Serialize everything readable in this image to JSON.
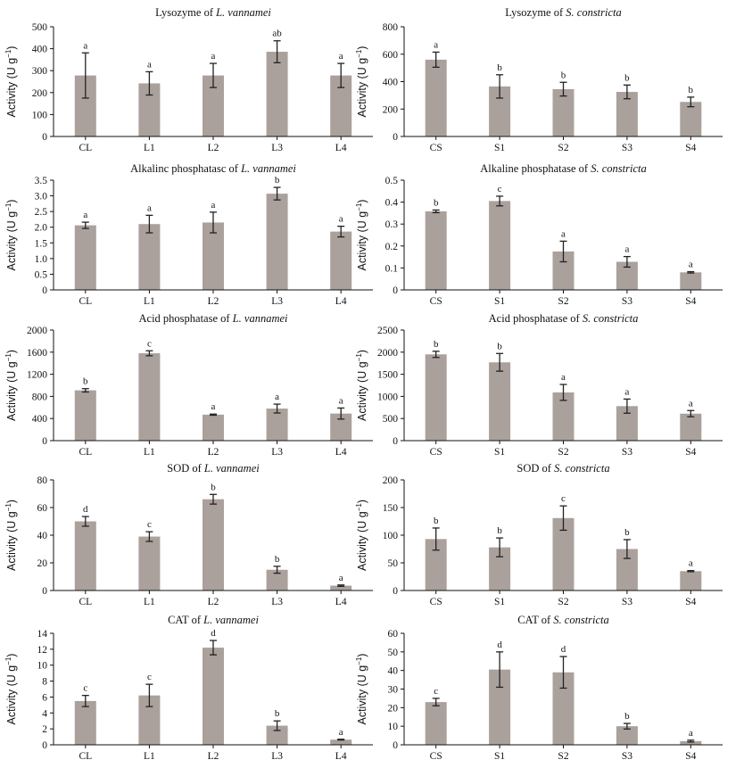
{
  "chart_data": [
    {
      "type": "bar",
      "title_prefix": "Lysozyme of",
      "species": "L. vannamei",
      "ylabel": "Activity (U g",
      "ylabel_sup": "−1",
      "ylabel_tail": ")",
      "categories": [
        "CL",
        "L1",
        "L2",
        "L3",
        "L4"
      ],
      "values": [
        278,
        242,
        278,
        386,
        278
      ],
      "errors": [
        103,
        53,
        55,
        50,
        55
      ],
      "letters": [
        "a",
        "a",
        "a",
        "ab",
        "a"
      ],
      "ylim": [
        0,
        500
      ],
      "yticks": [
        "0",
        "100",
        "200",
        "300",
        "400",
        "500"
      ]
    },
    {
      "type": "bar",
      "title_prefix": "Lysozyme of",
      "species": "S. constricta",
      "ylabel": "Activity (U g",
      "ylabel_sup": "−1",
      "ylabel_tail": ")",
      "categories": [
        "CS",
        "S1",
        "S2",
        "S3",
        "S4"
      ],
      "values": [
        560,
        365,
        345,
        325,
        252
      ],
      "errors": [
        55,
        85,
        50,
        50,
        35
      ],
      "letters": [
        "a",
        "b",
        "b",
        "b",
        "b"
      ],
      "ylim": [
        0,
        800
      ],
      "yticks": [
        "0",
        "200",
        "400",
        "600",
        "800"
      ]
    },
    {
      "type": "bar",
      "title_prefix": "Alkalinc phosphatasc of",
      "species": "L. vannamei",
      "ylabel": "Activity (U g",
      "ylabel_sup": "−1",
      "ylabel_tail": ")",
      "categories": [
        "CL",
        "L1",
        "L2",
        "L3",
        "L4"
      ],
      "values": [
        2.06,
        2.1,
        2.15,
        3.07,
        1.86
      ],
      "errors": [
        0.1,
        0.28,
        0.33,
        0.2,
        0.17
      ],
      "letters": [
        "a",
        "a",
        "a",
        "b",
        "a"
      ],
      "ylim": [
        0,
        3.5
      ],
      "yticks": [
        "0",
        "0.5",
        "1.0",
        "1.5",
        "2.0",
        "2.5",
        "3.0",
        "3.5"
      ]
    },
    {
      "type": "bar",
      "title_prefix": "Alkaline phosphatase of",
      "species": "S. constricta",
      "ylabel": "Activity (U g",
      "ylabel_sup": "−1",
      "ylabel_tail": ")",
      "categories": [
        "CS",
        "S1",
        "S2",
        "S3",
        "S4"
      ],
      "values": [
        0.358,
        0.405,
        0.175,
        0.128,
        0.08
      ],
      "errors": [
        0.006,
        0.022,
        0.047,
        0.024,
        0.003
      ],
      "letters": [
        "b",
        "c",
        "a",
        "a",
        "a"
      ],
      "ylim": [
        0,
        0.5
      ],
      "yticks": [
        "0",
        "0.1",
        "0.2",
        "0.3",
        "0.4",
        "0.5"
      ]
    },
    {
      "type": "bar",
      "title_prefix": "Acid phosphatase of",
      "species": "L. vannamei",
      "ylabel": "Activity (U g",
      "ylabel_sup": "−1",
      "ylabel_tail": ")",
      "categories": [
        "CL",
        "L1",
        "L2",
        "L3",
        "L4"
      ],
      "values": [
        910,
        1580,
        470,
        580,
        490
      ],
      "errors": [
        30,
        45,
        10,
        80,
        100
      ],
      "letters": [
        "b",
        "c",
        "a",
        "a",
        "a"
      ],
      "ylim": [
        0,
        2000
      ],
      "yticks": [
        "0",
        "400",
        "800",
        "1200",
        "1600",
        "2000"
      ]
    },
    {
      "type": "bar",
      "title_prefix": "Acid phosphatase of",
      "species": "S. constricta",
      "ylabel": "Activity (U g",
      "ylabel_sup": "−1",
      "ylabel_tail": ")",
      "categories": [
        "CS",
        "S1",
        "S2",
        "S3",
        "S4"
      ],
      "values": [
        1950,
        1770,
        1090,
        780,
        610
      ],
      "errors": [
        70,
        200,
        180,
        160,
        70
      ],
      "letters": [
        "b",
        "b",
        "a",
        "a",
        "a"
      ],
      "ylim": [
        0,
        2500
      ],
      "yticks": [
        "0",
        "500",
        "1000",
        "1500",
        "2000",
        "2500"
      ]
    },
    {
      "type": "bar",
      "title_prefix": "SOD of",
      "species": "L. vannamei",
      "ylabel": "Activity (U g",
      "ylabel_sup": "−1",
      "ylabel_tail": ")",
      "categories": [
        "CL",
        "L1",
        "L2",
        "L3",
        "L4"
      ],
      "values": [
        50,
        39,
        66,
        15,
        3.5
      ],
      "errors": [
        3.5,
        3.5,
        3.5,
        2.5,
        0.5
      ],
      "letters": [
        "d",
        "c",
        "b",
        "b",
        "a"
      ],
      "ylim": [
        0,
        80
      ],
      "yticks": [
        "0",
        "20",
        "40",
        "60",
        "80"
      ]
    },
    {
      "type": "bar",
      "title_prefix": "SOD of",
      "species": "S. constricta",
      "ylabel": "Activity (U g",
      "ylabel_sup": "−1",
      "ylabel_tail": ")",
      "categories": [
        "CS",
        "S1",
        "S2",
        "S3",
        "S4"
      ],
      "values": [
        93,
        78,
        131,
        75,
        35
      ],
      "errors": [
        20,
        17,
        22,
        17,
        1
      ],
      "letters": [
        "b",
        "b",
        "c",
        "b",
        "a"
      ],
      "ylim": [
        0,
        200
      ],
      "yticks": [
        "0",
        "50",
        "100",
        "150",
        "200"
      ]
    },
    {
      "type": "bar",
      "title_prefix": "CAT of",
      "species": "L. vannamei",
      "ylabel": "Activity (U g",
      "ylabel_sup": "−1",
      "ylabel_tail": ")",
      "categories": [
        "CL",
        "L1",
        "L2",
        "L3",
        "L4"
      ],
      "values": [
        5.5,
        6.2,
        12.2,
        2.4,
        0.65
      ],
      "errors": [
        0.7,
        1.4,
        0.9,
        0.6,
        0.05
      ],
      "letters": [
        "c",
        "c",
        "d",
        "b",
        "a"
      ],
      "ylim": [
        0,
        14
      ],
      "yticks": [
        "0",
        "2",
        "4",
        "6",
        "8",
        "10",
        "12",
        "14"
      ]
    },
    {
      "type": "bar",
      "title_prefix": "CAT of",
      "species": "S. constricta",
      "ylabel": "Activity (U g",
      "ylabel_sup": "−1",
      "ylabel_tail": ")",
      "categories": [
        "CS",
        "S1",
        "S2",
        "S3",
        "S4"
      ],
      "values": [
        23,
        40.5,
        39,
        10,
        2
      ],
      "errors": [
        2,
        9.5,
        8.5,
        1.5,
        0.5
      ],
      "letters": [
        "c",
        "d",
        "d",
        "b",
        "a"
      ],
      "ylim": [
        0,
        60
      ],
      "yticks": [
        "0",
        "10",
        "20",
        "30",
        "40",
        "50",
        "60"
      ]
    }
  ]
}
